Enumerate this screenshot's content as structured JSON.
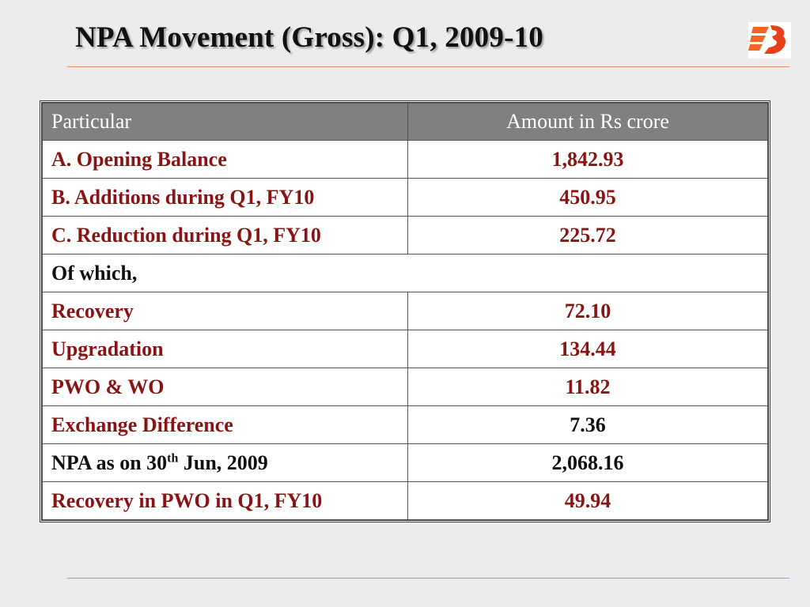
{
  "slide": {
    "title": "NPA Movement (Gross): Q1, 2009-10",
    "logo_icon": "bank-of-baroda-logo"
  },
  "table": {
    "headers": [
      "Particular",
      "Amount in Rs crore"
    ],
    "rows": [
      {
        "particular": "A. Opening Balance",
        "amount": "1,842.93",
        "color": "red"
      },
      {
        "particular": "B. Additions during Q1, FY10",
        "amount": "450.95",
        "color": "red"
      },
      {
        "particular": "C. Reduction during Q1, FY10",
        "amount": "225.72",
        "color": "red"
      },
      {
        "particular": "Of which,",
        "amount": null,
        "color": "black"
      },
      {
        "particular": "Recovery",
        "amount": "72.10",
        "color": "red"
      },
      {
        "particular": "Upgradation",
        "amount": "134.44",
        "color": "red"
      },
      {
        "particular": "PWO & WO",
        "amount": "11.82",
        "color": "red"
      },
      {
        "particular": "Exchange Difference",
        "amount": "7.36",
        "color": "red_black_amount"
      },
      {
        "particular_prefix": "NPA as on 30",
        "particular_sup": "th",
        "particular_suffix": " Jun, 2009",
        "amount": "2,068.16",
        "color": "black"
      },
      {
        "particular": "Recovery in PWO in Q1, FY10",
        "amount": "49.94",
        "color": "red"
      }
    ]
  },
  "colors": {
    "accent_red": "#8b1313",
    "header_bg": "#808080",
    "rule": "#e8896a"
  }
}
